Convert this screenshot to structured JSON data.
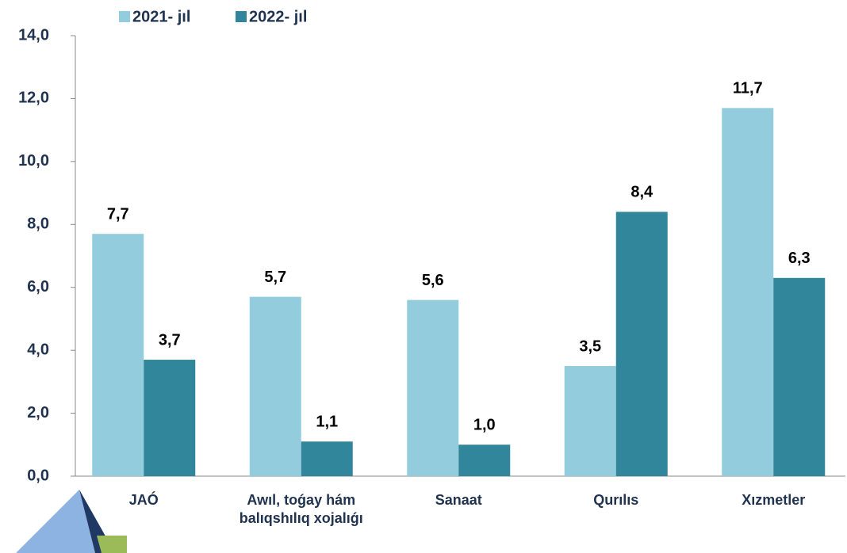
{
  "chart_data": {
    "type": "bar",
    "categories": [
      "JAÓ",
      "Awıl, toǵay hám balıqshılıq xojalıǵı",
      "Sanaat",
      "Qurılıs",
      "Xızmetler"
    ],
    "series": [
      {
        "name": "2021- jıl",
        "color": "#93cddd",
        "values": [
          7.7,
          5.7,
          5.6,
          3.5,
          11.7
        ],
        "value_labels": [
          "7,7",
          "5,7",
          "5,6",
          "3,5",
          "11,7"
        ]
      },
      {
        "name": "2022- jıl",
        "color": "#31869b",
        "values": [
          3.7,
          1.1,
          1.0,
          8.4,
          6.3
        ],
        "value_labels": [
          "3,7",
          "1,1",
          "1,0",
          "8,4",
          "6,3"
        ]
      }
    ],
    "ylim": [
      0,
      14
    ],
    "yticks": [
      {
        "value": 0,
        "label": "0,0"
      },
      {
        "value": 2,
        "label": "2,0"
      },
      {
        "value": 4,
        "label": "4,0"
      },
      {
        "value": 6,
        "label": "6,0"
      },
      {
        "value": 8,
        "label": "8,0"
      },
      {
        "value": 10,
        "label": "10,0"
      },
      {
        "value": 12,
        "label": "12,0"
      },
      {
        "value": 14,
        "label": "14,0"
      }
    ],
    "legend": "top"
  }
}
